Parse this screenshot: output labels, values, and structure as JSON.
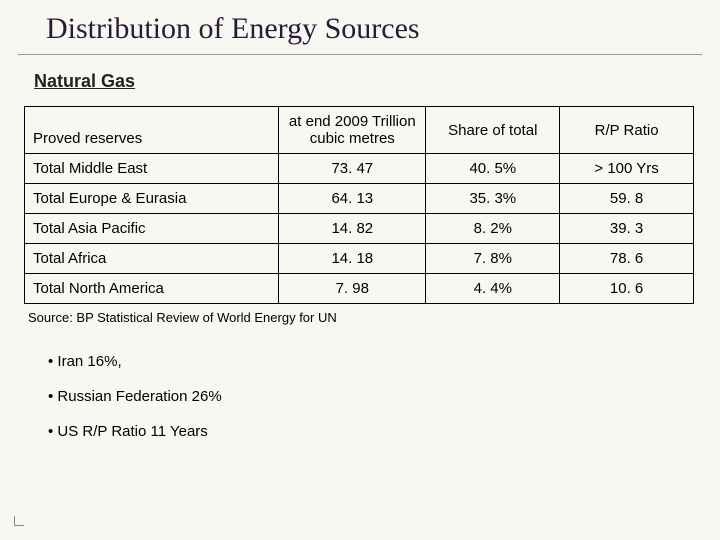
{
  "title": "Distribution of Energy Sources",
  "subtitle": "Natural Gas",
  "table": {
    "columns": [
      "Proved reserves",
      "at end 2009 Trillion cubic metres",
      "Share of total",
      "R/P Ratio"
    ],
    "col_widths": [
      "38%",
      "22%",
      "20%",
      "20%"
    ],
    "rows": [
      [
        "Total Middle East",
        "73. 47",
        "40. 5%",
        "> 100 Yrs"
      ],
      [
        "Total Europe & Eurasia",
        "64. 13",
        "35. 3%",
        "59. 8"
      ],
      [
        "Total Asia Pacific",
        "14. 82",
        "8. 2%",
        "39. 3"
      ],
      [
        "Total Africa",
        "14. 18",
        "7. 8%",
        "78. 6"
      ],
      [
        "Total North America",
        "7. 98",
        "4. 4%",
        "10. 6"
      ]
    ],
    "border_color": "#000000",
    "header_fontsize": 15,
    "cell_fontsize": 15
  },
  "source_line": "Source: BP Statistical Review of World Energy for UN",
  "bullets": [
    "Iran 16%,",
    "Russian Federation 26%",
    "US R/P Ratio 11 Years"
  ],
  "colors": {
    "background": "#f8f8f2",
    "title": "#2a1a3a",
    "text": "#000000",
    "divider": "#999999"
  }
}
